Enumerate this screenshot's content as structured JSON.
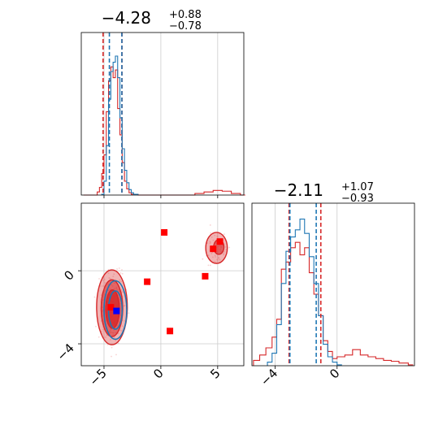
{
  "colors": {
    "red": "#d62728",
    "red_pure": "#ff0000",
    "blue": "#1f77b4",
    "blue_pure": "#0000ff",
    "grid": "#cccccc"
  },
  "chart_data": {
    "type": "corner",
    "parameters": [
      {
        "title_center": "−4.28",
        "title_sup": "+0.88",
        "title_sub": "−0.78"
      },
      {
        "title_center": "−2.11",
        "title_sup": "+1.07",
        "title_sub": "−0.93"
      }
    ],
    "xlim_param0": [
      -7.0,
      7.3
    ],
    "xlim_param1": [
      -5.5,
      5.0
    ],
    "ylim_param1": [
      -5.2,
      3.7
    ],
    "tick_labels_param0": [
      "−5",
      "0",
      "5"
    ],
    "tick_values_param0": [
      -5,
      0,
      5
    ],
    "tick_labels_param1": [
      "−4",
      "0"
    ],
    "tick_values_param1": [
      -4,
      0
    ],
    "hist1d_param0": {
      "quantile_lines_red": [
        -5.08,
        -3.42
      ],
      "quantile_lines_blue": [
        -4.6,
        -3.5
      ],
      "quantile_lines_shared": [
        -3.5
      ],
      "red_bins": [
        [
          -6.8,
          0
        ],
        [
          -5.6,
          0.2
        ],
        [
          -5.4,
          0.5
        ],
        [
          -5.2,
          1.4
        ],
        [
          -5.0,
          2.6
        ],
        [
          -4.8,
          5.4
        ],
        [
          -4.6,
          7.4
        ],
        [
          -4.4,
          8.3
        ],
        [
          -4.2,
          7.6
        ],
        [
          -4.0,
          8.1
        ],
        [
          -3.8,
          5.6
        ],
        [
          -3.6,
          3.9
        ],
        [
          -3.4,
          2.1
        ],
        [
          -3.2,
          0.9
        ],
        [
          -3.0,
          0.4
        ],
        [
          -2.8,
          0.15
        ],
        [
          -2.6,
          0.05
        ],
        [
          -2.0,
          0
        ],
        [
          3.0,
          0.1
        ],
        [
          3.8,
          0.2
        ],
        [
          4.6,
          0.3
        ],
        [
          5.4,
          0.25
        ],
        [
          6.2,
          0.1
        ],
        [
          7.0,
          0
        ]
      ],
      "blue_bins": [
        [
          -5.2,
          0.05
        ],
        [
          -5.0,
          0.9
        ],
        [
          -4.8,
          3.2
        ],
        [
          -4.6,
          6.2
        ],
        [
          -4.4,
          8.0
        ],
        [
          -4.2,
          8.6
        ],
        [
          -4.0,
          9.0
        ],
        [
          -3.8,
          7.6
        ],
        [
          -3.6,
          5.0
        ],
        [
          -3.4,
          3.0
        ],
        [
          -3.2,
          1.6
        ],
        [
          -3.0,
          0.8
        ],
        [
          -2.8,
          0.35
        ],
        [
          -2.6,
          0.15
        ],
        [
          -2.4,
          0.05
        ]
      ]
    },
    "hist1d_param1": {
      "quantile_lines_red": [
        -3.1,
        -1.05
      ],
      "quantile_lines_blue": [
        -3.1,
        -1.4
      ],
      "red_bins": [
        [
          -5.4,
          0.3
        ],
        [
          -5.0,
          0.6
        ],
        [
          -4.6,
          1.0
        ],
        [
          -4.2,
          1.6
        ],
        [
          -3.9,
          2.6
        ],
        [
          -3.6,
          5.4
        ],
        [
          -3.3,
          5.8
        ],
        [
          -3.0,
          6.6
        ],
        [
          -2.7,
          6.9
        ],
        [
          -2.4,
          6.2
        ],
        [
          -2.1,
          6.6
        ],
        [
          -1.8,
          5.2
        ],
        [
          -1.5,
          4.0
        ],
        [
          -1.2,
          2.8
        ],
        [
          -0.9,
          1.4
        ],
        [
          -0.6,
          0.8
        ],
        [
          -0.3,
          0.4
        ],
        [
          0.0,
          0.5
        ],
        [
          0.5,
          0.6
        ],
        [
          1.0,
          0.9
        ],
        [
          1.5,
          0.6
        ],
        [
          2.0,
          0.5
        ],
        [
          2.5,
          0.4
        ],
        [
          3.0,
          0.3
        ],
        [
          3.5,
          0.25
        ],
        [
          4.0,
          0.15
        ],
        [
          4.6,
          0.05
        ]
      ],
      "blue_bins": [
        [
          -4.5,
          0.2
        ],
        [
          -4.2,
          0.7
        ],
        [
          -3.9,
          2.3
        ],
        [
          -3.6,
          4.6
        ],
        [
          -3.3,
          6.4
        ],
        [
          -3.0,
          7.2
        ],
        [
          -2.7,
          7.6
        ],
        [
          -2.4,
          8.2
        ],
        [
          -2.1,
          7.4
        ],
        [
          -1.8,
          6.1
        ],
        [
          -1.5,
          4.6
        ],
        [
          -1.2,
          2.8
        ],
        [
          -0.9,
          1.2
        ],
        [
          -0.6,
          0.5
        ],
        [
          -0.3,
          0.2
        ],
        [
          0.0,
          0.05
        ]
      ]
    },
    "hist2d": {
      "red_markers": [
        [
          0.3,
          2.1
        ],
        [
          4.6,
          1.2
        ],
        [
          5.2,
          1.6
        ],
        [
          -1.2,
          -0.6
        ],
        [
          3.9,
          -0.3
        ],
        [
          -4.4,
          -2.0
        ],
        [
          0.8,
          -3.3
        ]
      ],
      "blue_marker": [
        -3.9,
        -2.2
      ],
      "red_contours": [
        {
          "cx": -4.3,
          "cy": -2.0,
          "rx": 1.35,
          "ry": 2.05,
          "opacity": 0.35
        },
        {
          "cx": -4.3,
          "cy": -2.05,
          "rx": 0.95,
          "ry": 1.55,
          "opacity": 0.55
        },
        {
          "cx": -4.25,
          "cy": -2.1,
          "rx": 0.6,
          "ry": 1.05,
          "opacity": 0.8
        },
        {
          "cx": 4.9,
          "cy": 1.25,
          "rx": 0.95,
          "ry": 0.85,
          "opacity": 0.35
        },
        {
          "cx": 5.1,
          "cy": 1.3,
          "rx": 0.45,
          "ry": 0.4,
          "opacity": 0.6
        }
      ],
      "blue_contours": [
        {
          "cx": -4.0,
          "cy": -2.15,
          "rx": 1.0,
          "ry": 1.6
        },
        {
          "cx": -4.0,
          "cy": -2.15,
          "rx": 0.6,
          "ry": 1.05
        }
      ]
    }
  }
}
